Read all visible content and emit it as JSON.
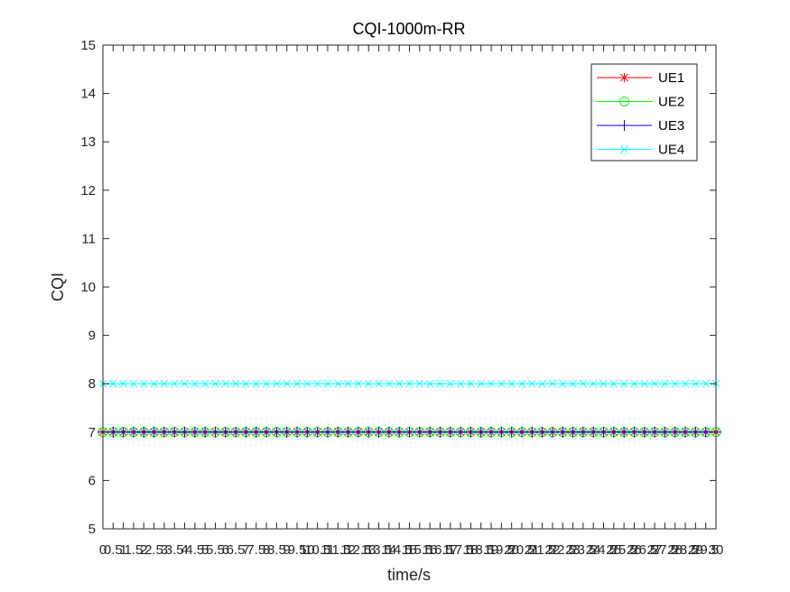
{
  "chart_data": {
    "type": "line",
    "title": "CQI-1000m-RR",
    "xlabel": "time/s",
    "ylabel": "CQI",
    "xlim": [
      0,
      30
    ],
    "ylim": [
      5,
      15
    ],
    "x_ticks": [
      0,
      0.5,
      1,
      1.5,
      2,
      2.5,
      3,
      3.5,
      4,
      4.5,
      5,
      5.5,
      6,
      6.5,
      7,
      7.5,
      8,
      8.5,
      9,
      9.5,
      10,
      10.5,
      11,
      11.5,
      12,
      12.5,
      13,
      13.5,
      14,
      14.5,
      15,
      15.5,
      16,
      16.5,
      17,
      17.5,
      18,
      18.5,
      19,
      19.5,
      20,
      20.5,
      21,
      21.5,
      22,
      22.5,
      23,
      23.5,
      24,
      24.5,
      25,
      25.5,
      26,
      26.5,
      27,
      27.5,
      28,
      28.5,
      29,
      29.5,
      30
    ],
    "y_ticks": [
      5,
      6,
      7,
      8,
      9,
      10,
      11,
      12,
      13,
      14,
      15
    ],
    "x_step": 0.5,
    "grid": false,
    "legend_position": "top-right",
    "series": [
      {
        "name": "UE1",
        "y": 7,
        "color": "#ff0000",
        "marker": "star"
      },
      {
        "name": "UE2",
        "y": 7,
        "color": "#00ff00",
        "marker": "circle"
      },
      {
        "name": "UE3",
        "y": 7,
        "color": "#0000ff",
        "marker": "plus"
      },
      {
        "name": "UE4",
        "y": 8,
        "color": "#00ffff",
        "marker": "x"
      }
    ]
  }
}
